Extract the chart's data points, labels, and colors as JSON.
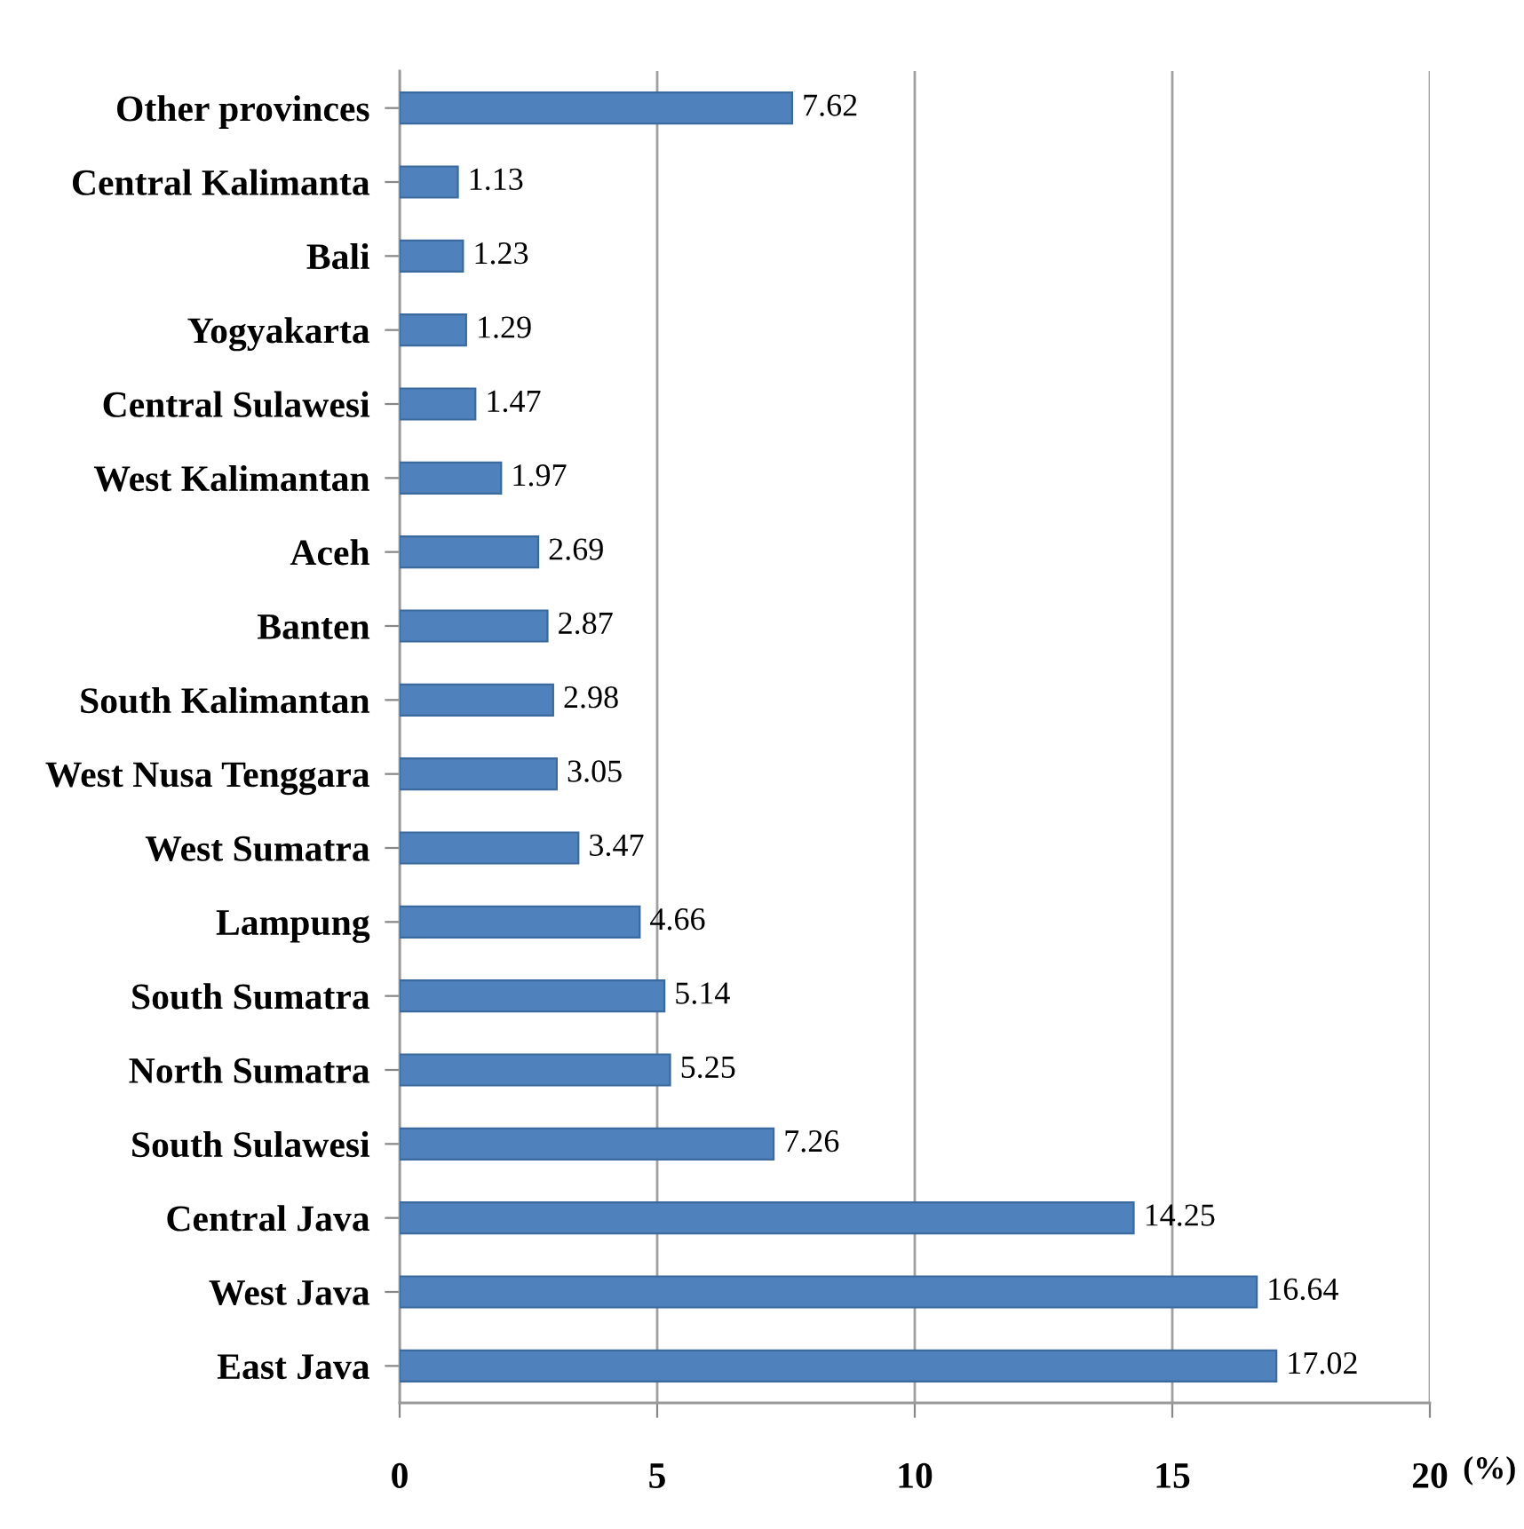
{
  "chart_data": {
    "type": "bar",
    "orientation": "horizontal",
    "xlabel": "(%)",
    "categories": [
      "Other provinces",
      "Central Kalimanta",
      "Bali",
      "Yogyakarta",
      "Central Sulawesi",
      "West Kalimantan",
      "Aceh",
      "Banten",
      "South Kalimantan",
      "West Nusa Tenggara",
      "West Sumatra",
      "Lampung",
      "South Sumatra",
      "North Sumatra",
      "South Sulawesi",
      "Central Java",
      "West Java",
      "East Java"
    ],
    "values": [
      7.62,
      1.13,
      1.23,
      1.29,
      1.47,
      1.97,
      2.69,
      2.87,
      2.98,
      3.05,
      3.47,
      4.66,
      5.14,
      5.25,
      7.26,
      14.25,
      16.64,
      17.02
    ],
    "color": "#4f81bd",
    "xlim": [
      0,
      20
    ],
    "xticks": [
      0,
      5,
      10,
      15,
      20
    ],
    "grid": "x",
    "legend": false,
    "data_labels": true
  }
}
